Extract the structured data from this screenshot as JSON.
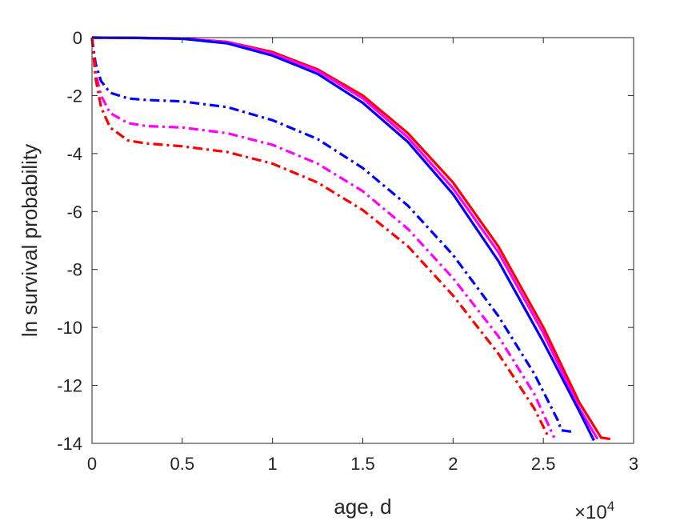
{
  "chart_data": {
    "type": "line",
    "title": "",
    "xlabel": "age, d",
    "ylabel": "ln survival probability",
    "x_exponent_label": {
      "base": "×10",
      "exponent": "4"
    },
    "xlim": [
      0,
      30000
    ],
    "ylim": [
      -14,
      0
    ],
    "x_ticks": [
      0,
      5000,
      10000,
      15000,
      20000,
      25000,
      30000
    ],
    "x_tick_labels": [
      "0",
      "0.5",
      "1",
      "1.5",
      "2",
      "2.5",
      "3"
    ],
    "y_ticks": [
      0,
      -2,
      -4,
      -6,
      -8,
      -10,
      -12,
      -14
    ],
    "y_tick_labels": [
      "0",
      "-2",
      "-4",
      "-6",
      "-8",
      "-10",
      "-12",
      "-14"
    ],
    "grid": false,
    "legend": "none",
    "series": [
      {
        "color": "#ff0000",
        "style": "solid",
        "points": [
          [
            0,
            0
          ],
          [
            2500,
            -0.01
          ],
          [
            5000,
            -0.03
          ],
          [
            7500,
            -0.15
          ],
          [
            10000,
            -0.5
          ],
          [
            12500,
            -1.1
          ],
          [
            15000,
            -2.0
          ],
          [
            17500,
            -3.3
          ],
          [
            20000,
            -5.0
          ],
          [
            22500,
            -7.2
          ],
          [
            25000,
            -10.0
          ],
          [
            27000,
            -12.6
          ],
          [
            28200,
            -13.8
          ],
          [
            28700,
            -13.85
          ]
        ]
      },
      {
        "color": "#ff00ff",
        "style": "solid",
        "points": [
          [
            0,
            0
          ],
          [
            2500,
            -0.01
          ],
          [
            5000,
            -0.03
          ],
          [
            7500,
            -0.16
          ],
          [
            10000,
            -0.55
          ],
          [
            12500,
            -1.15
          ],
          [
            15000,
            -2.1
          ],
          [
            17500,
            -3.45
          ],
          [
            20000,
            -5.2
          ],
          [
            22500,
            -7.4
          ],
          [
            25000,
            -10.2
          ],
          [
            27000,
            -12.8
          ],
          [
            28000,
            -13.85
          ]
        ]
      },
      {
        "color": "#0000ff",
        "style": "solid",
        "points": [
          [
            0,
            0
          ],
          [
            2500,
            -0.01
          ],
          [
            5000,
            -0.04
          ],
          [
            7500,
            -0.2
          ],
          [
            10000,
            -0.62
          ],
          [
            12500,
            -1.25
          ],
          [
            15000,
            -2.25
          ],
          [
            17500,
            -3.6
          ],
          [
            20000,
            -5.4
          ],
          [
            22500,
            -7.7
          ],
          [
            25000,
            -10.5
          ],
          [
            27000,
            -12.9
          ],
          [
            27800,
            -13.9
          ]
        ]
      },
      {
        "color": "#0000ff",
        "style": "dashdot",
        "points": [
          [
            0,
            0
          ],
          [
            200,
            -0.9
          ],
          [
            500,
            -1.5
          ],
          [
            1000,
            -1.9
          ],
          [
            2000,
            -2.1
          ],
          [
            3000,
            -2.15
          ],
          [
            5000,
            -2.2
          ],
          [
            7500,
            -2.4
          ],
          [
            10000,
            -2.85
          ],
          [
            12500,
            -3.5
          ],
          [
            15000,
            -4.5
          ],
          [
            17500,
            -5.8
          ],
          [
            20000,
            -7.5
          ],
          [
            22500,
            -9.6
          ],
          [
            24500,
            -11.6
          ],
          [
            25800,
            -13.2
          ],
          [
            26000,
            -13.55
          ],
          [
            26600,
            -13.6
          ]
        ]
      },
      {
        "color": "#ff00ff",
        "style": "dashdot",
        "points": [
          [
            0,
            0
          ],
          [
            200,
            -1.2
          ],
          [
            500,
            -2.0
          ],
          [
            1000,
            -2.6
          ],
          [
            2000,
            -2.95
          ],
          [
            3000,
            -3.05
          ],
          [
            5000,
            -3.1
          ],
          [
            7500,
            -3.3
          ],
          [
            10000,
            -3.7
          ],
          [
            12500,
            -4.35
          ],
          [
            15000,
            -5.3
          ],
          [
            17500,
            -6.6
          ],
          [
            20000,
            -8.3
          ],
          [
            22500,
            -10.3
          ],
          [
            24500,
            -12.3
          ],
          [
            25600,
            -13.8
          ]
        ]
      },
      {
        "color": "#ff0000",
        "style": "dashdot",
        "points": [
          [
            0,
            0
          ],
          [
            200,
            -1.4
          ],
          [
            500,
            -2.4
          ],
          [
            1000,
            -3.1
          ],
          [
            2000,
            -3.55
          ],
          [
            3000,
            -3.65
          ],
          [
            5000,
            -3.75
          ],
          [
            7500,
            -3.95
          ],
          [
            10000,
            -4.35
          ],
          [
            12500,
            -5.0
          ],
          [
            15000,
            -5.95
          ],
          [
            17500,
            -7.2
          ],
          [
            20000,
            -8.9
          ],
          [
            22500,
            -10.9
          ],
          [
            24500,
            -12.8
          ],
          [
            25300,
            -13.8
          ]
        ]
      }
    ]
  }
}
